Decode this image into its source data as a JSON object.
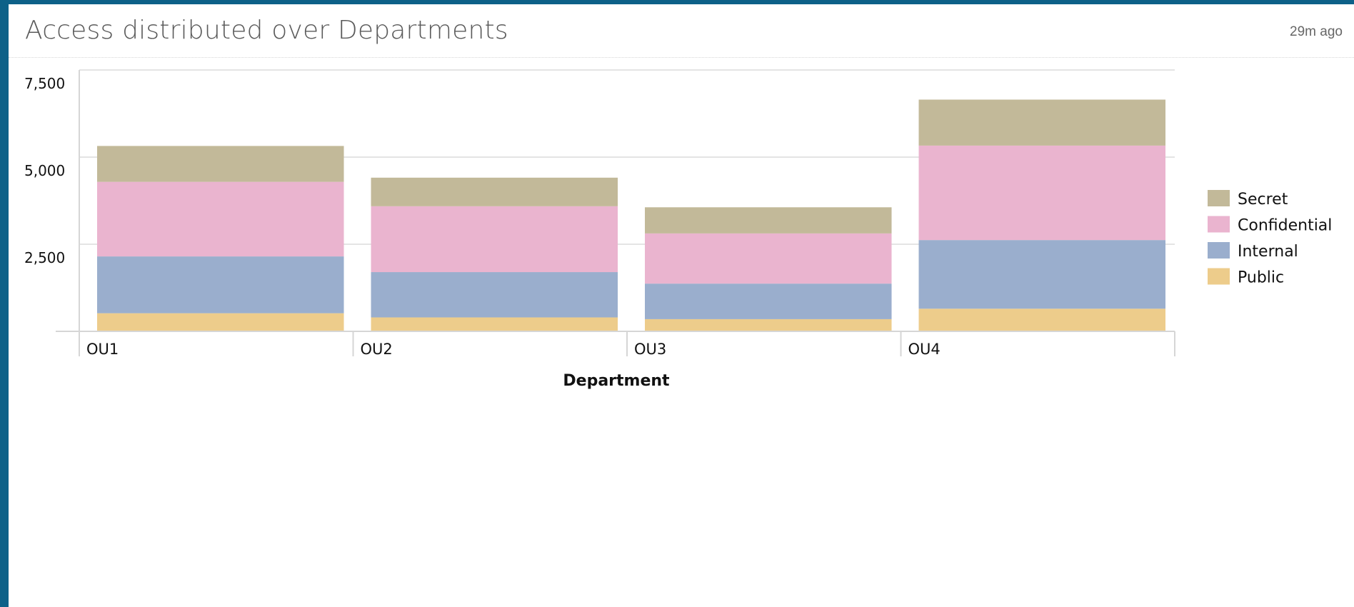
{
  "panel": {
    "title": "Access distributed over Departments",
    "updated": "29m ago"
  },
  "chart_data": {
    "type": "bar",
    "stacked": true,
    "categories": [
      "OU1",
      "OU2",
      "OU3",
      "OU4"
    ],
    "series": [
      {
        "name": "Public",
        "color": "#edcc8b",
        "values": [
          520,
          400,
          350,
          650
        ]
      },
      {
        "name": "Internal",
        "color": "#9aaecd",
        "values": [
          1630,
          1300,
          1020,
          1970
        ]
      },
      {
        "name": "Confidential",
        "color": "#eab4cf",
        "values": [
          2140,
          1890,
          1440,
          2710
        ]
      },
      {
        "name": "Secret",
        "color": "#c2b999",
        "values": [
          1030,
          820,
          750,
          1320
        ]
      }
    ],
    "xlabel": "Department",
    "ylabel": "",
    "ylim": [
      0,
      7500
    ],
    "yticks": [
      "2,500",
      "5,000",
      "7,500"
    ],
    "ytick_values": [
      2500,
      5000,
      7500
    ],
    "grid": true,
    "legend": "right",
    "legend_order": [
      "Secret",
      "Confidential",
      "Internal",
      "Public"
    ]
  }
}
